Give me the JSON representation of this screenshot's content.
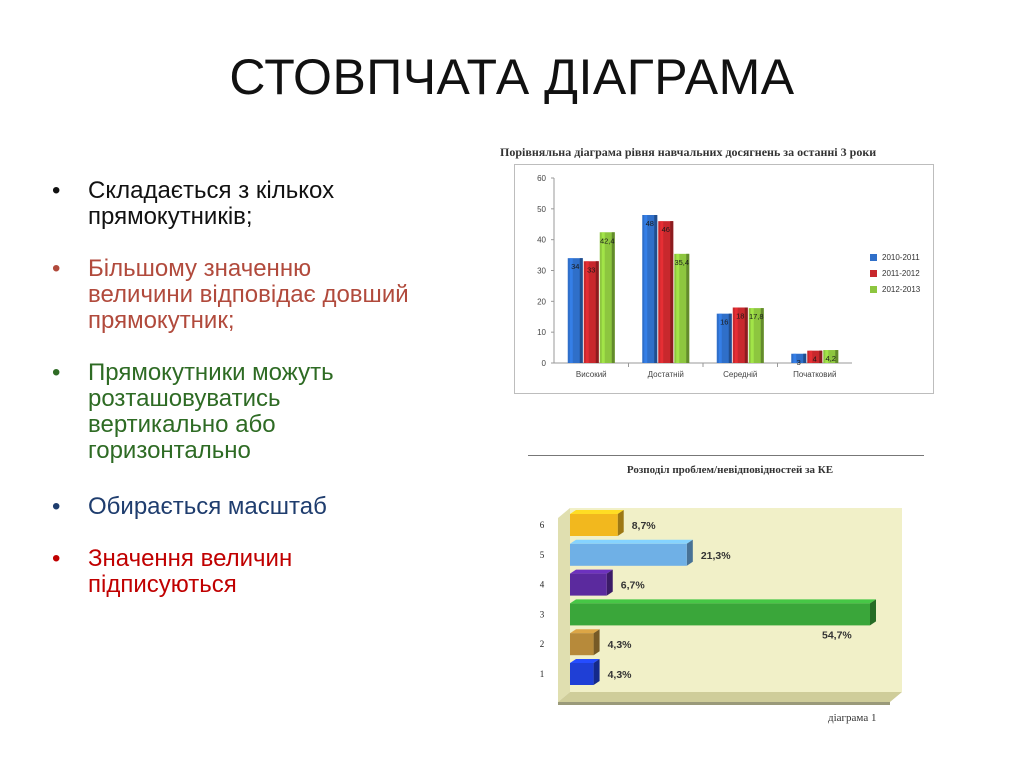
{
  "slide": {
    "title": "СТОВПЧАТА ДІАГРАМА",
    "bullets": [
      {
        "text": "Складається з кількох прямокутників;",
        "color": "#111111"
      },
      {
        "text": "Більшому значенню величини відповідає довший прямокутник;",
        "color": "#b14a3c"
      },
      {
        "text": "Прямокутники можуть розташовуватись вертикально або горизонтально",
        "color": "#2e6b24"
      },
      {
        "text": "Обирається  масштаб",
        "color": "#1f3d6e"
      },
      {
        "text": "Значення величин підписуються",
        "color": "#c00000"
      }
    ]
  },
  "chart_data": [
    {
      "type": "bar",
      "title": "Порівняльна діаграма рівня навчальних досягнень за останні  3 роки",
      "categories": [
        "Високий",
        "Достатній",
        "Середній",
        "Початковий"
      ],
      "series": [
        {
          "name": "2010-2011",
          "values": [
            34,
            48,
            16,
            3
          ],
          "labels": [
            "34",
            "48",
            "16",
            "3"
          ],
          "color": "#2f6fc9"
        },
        {
          "name": "2011-2012",
          "values": [
            33,
            46,
            18,
            4
          ],
          "labels": [
            "33",
            "46",
            "18",
            "4"
          ],
          "color": "#c8282d"
        },
        {
          "name": "2012-2013",
          "values": [
            42.4,
            35.4,
            17.8,
            4.2
          ],
          "labels": [
            "42,4",
            "35,4",
            "17,8",
            "4,2"
          ],
          "color": "#8dc63f"
        }
      ],
      "ylim": [
        0,
        60
      ],
      "yticks": [
        "0",
        "10",
        "20",
        "30",
        "40",
        "50",
        "60"
      ],
      "grid": false,
      "legend": "right"
    },
    {
      "type": "bar",
      "orientation": "horizontal",
      "title": "Розподіл проблем/невідповідностей за КЕ",
      "categories": [
        "1",
        "2",
        "3",
        "4",
        "5",
        "6"
      ],
      "values": [
        4.3,
        4.3,
        54.7,
        6.7,
        21.3,
        8.7
      ],
      "labels": [
        "4,3%",
        "4,3%",
        "54,7%",
        "6,7%",
        "21,3%",
        "8,7%"
      ],
      "colors": [
        "#1f3fd6",
        "#b78a3a",
        "#3aa63a",
        "#5b2a9e",
        "#6fb0e6",
        "#f2b81e"
      ],
      "background": "#f1f0c8",
      "caption": "діаграма 1"
    }
  ]
}
